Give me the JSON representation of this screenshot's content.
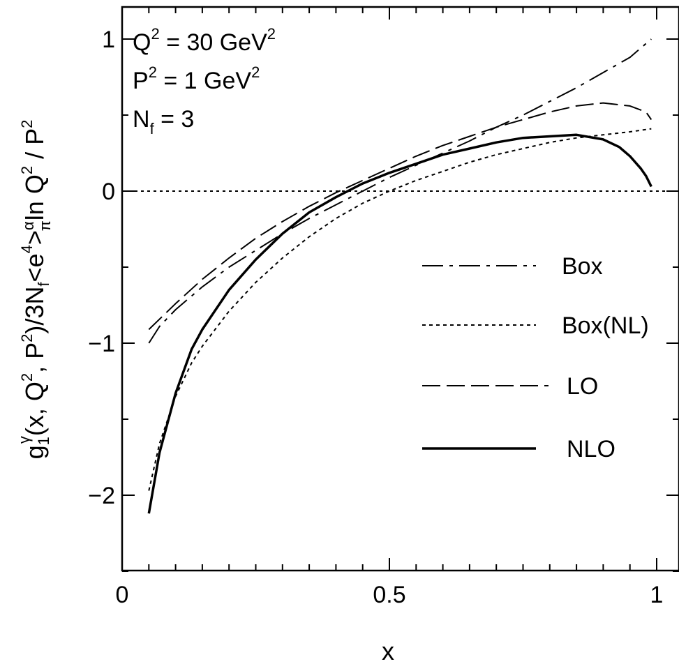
{
  "chart_data": {
    "type": "line",
    "xlabel": "x",
    "ylabel": {
      "g": "g",
      "sub1": "1",
      "supgamma": "γ",
      "open": "(x, Q",
      "q2exp": "2",
      "mid": ", P",
      "p2exp": "2",
      "after": ")/3N",
      "nfsub": "f",
      "lt": "<e",
      "e4exp": "4",
      "gt": ">",
      "alpha": "α",
      "pi": "π",
      "ln": "ln Q",
      "q2exp2": "2",
      "slash": " / P",
      "p2exp2": "2"
    },
    "xlim": [
      0,
      1
    ],
    "ylim": [
      -2.5,
      1.2
    ],
    "x_ticks": [
      {
        "value": 0,
        "label": "0"
      },
      {
        "value": 0.5,
        "label": "0.5"
      },
      {
        "value": 1,
        "label": "1"
      }
    ],
    "y_ticks": [
      {
        "value": 1,
        "label": "1"
      },
      {
        "value": 0,
        "label": "0"
      },
      {
        "value": -1,
        "label": "−1"
      },
      {
        "value": -2,
        "label": "−2"
      }
    ],
    "annotations": {
      "q2": {
        "base": "Q",
        "exp": "2",
        "rest": " = 30 GeV",
        "exp2": "2"
      },
      "p2": {
        "base": "P",
        "exp": "2",
        "rest": " = 1 GeV",
        "exp2": "2"
      },
      "nf": {
        "base": "N",
        "sub": "f",
        "rest": " =  3"
      }
    },
    "reference_line_y": 0,
    "legend_position": "right",
    "series": [
      {
        "name": "Box",
        "style": "dashdot",
        "x": [
          0.05,
          0.07,
          0.1,
          0.15,
          0.2,
          0.25,
          0.3,
          0.35,
          0.4,
          0.45,
          0.5,
          0.55,
          0.6,
          0.65,
          0.7,
          0.75,
          0.8,
          0.85,
          0.9,
          0.95,
          0.99
        ],
        "y": [
          -1.0,
          -0.89,
          -0.78,
          -0.63,
          -0.5,
          -0.39,
          -0.28,
          -0.18,
          -0.09,
          0.0,
          0.09,
          0.17,
          0.25,
          0.33,
          0.42,
          0.5,
          0.59,
          0.68,
          0.78,
          0.88,
          1.0
        ]
      },
      {
        "name": "Box(NL)",
        "style": "dotted",
        "x": [
          0.05,
          0.07,
          0.1,
          0.13,
          0.15,
          0.2,
          0.25,
          0.3,
          0.35,
          0.4,
          0.45,
          0.5,
          0.55,
          0.6,
          0.65,
          0.7,
          0.75,
          0.8,
          0.85,
          0.9,
          0.95,
          0.99
        ],
        "y": [
          -1.97,
          -1.66,
          -1.35,
          -1.13,
          -1.02,
          -0.79,
          -0.6,
          -0.44,
          -0.3,
          -0.18,
          -0.08,
          0.0,
          0.07,
          0.13,
          0.19,
          0.24,
          0.28,
          0.32,
          0.35,
          0.37,
          0.39,
          0.41
        ]
      },
      {
        "name": "LO",
        "style": "dashed",
        "x": [
          0.05,
          0.1,
          0.15,
          0.2,
          0.25,
          0.3,
          0.35,
          0.4,
          0.45,
          0.5,
          0.55,
          0.6,
          0.65,
          0.7,
          0.75,
          0.8,
          0.85,
          0.9,
          0.95,
          0.98,
          0.99
        ],
        "y": [
          -0.91,
          -0.74,
          -0.58,
          -0.44,
          -0.31,
          -0.2,
          -0.1,
          -0.01,
          0.07,
          0.15,
          0.23,
          0.3,
          0.36,
          0.42,
          0.47,
          0.52,
          0.56,
          0.58,
          0.56,
          0.52,
          0.47
        ]
      },
      {
        "name": "NLO",
        "style": "solid",
        "x": [
          0.05,
          0.07,
          0.1,
          0.13,
          0.15,
          0.2,
          0.25,
          0.3,
          0.35,
          0.4,
          0.45,
          0.5,
          0.55,
          0.6,
          0.65,
          0.7,
          0.75,
          0.8,
          0.85,
          0.9,
          0.93,
          0.95,
          0.97,
          0.98,
          0.99
        ],
        "y": [
          -2.12,
          -1.72,
          -1.33,
          -1.04,
          -0.91,
          -0.65,
          -0.45,
          -0.28,
          -0.14,
          -0.04,
          0.05,
          0.12,
          0.18,
          0.24,
          0.28,
          0.32,
          0.35,
          0.36,
          0.37,
          0.34,
          0.29,
          0.23,
          0.15,
          0.1,
          0.03
        ]
      }
    ]
  }
}
